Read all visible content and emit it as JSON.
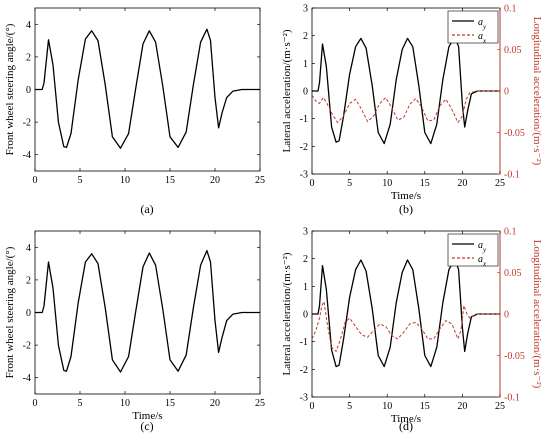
{
  "chart_data": [
    {
      "panel_label": "(a)",
      "type": "line",
      "xlabel": "",
      "ylabel": "Front wheel steering angle/(°)",
      "xlim": [
        0,
        25
      ],
      "ylim": [
        -5,
        5
      ],
      "xticks": [
        "0",
        "5",
        "10",
        "15",
        "20",
        "25"
      ],
      "yticks": [
        "-4",
        "-2",
        "0",
        "2",
        "4"
      ],
      "grid": false,
      "series": [
        {
          "color": "#000000",
          "x": [
            0,
            0.8,
            1.0,
            1.5,
            2.0,
            2.6,
            3.2,
            3.5,
            4.0,
            4.8,
            5.6,
            6.3,
            7.0,
            7.8,
            8.6,
            9.5,
            10.4,
            11.2,
            12.0,
            12.7,
            13.4,
            14.2,
            15.0,
            15.9,
            16.8,
            17.6,
            18.4,
            19.1,
            19.5,
            20.0,
            20.4,
            20.8,
            21.3,
            22.0,
            23.0,
            25.0
          ],
          "y": [
            0,
            0,
            0.4,
            3.05,
            1.5,
            -2.0,
            -3.5,
            -3.55,
            -2.7,
            0.6,
            3.1,
            3.6,
            3.0,
            0.3,
            -2.9,
            -3.6,
            -2.7,
            0.1,
            2.8,
            3.6,
            2.9,
            0.2,
            -2.9,
            -3.55,
            -2.6,
            0.3,
            2.9,
            3.7,
            3.0,
            -0.5,
            -2.35,
            -1.4,
            -0.5,
            -0.1,
            0,
            0
          ]
        }
      ]
    },
    {
      "panel_label": "(b)",
      "type": "line",
      "xlabel": "Time/s",
      "ylabel": "Lateral acceleration/(m·s⁻²)",
      "y2label": "Longitudinal acceleration/(m·s⁻²)",
      "xlim": [
        0,
        25
      ],
      "ylim": [
        -3,
        3
      ],
      "y2lim": [
        -0.1,
        0.1
      ],
      "xticks": [
        "0",
        "5",
        "10",
        "15",
        "20",
        "25"
      ],
      "yticks": [
        "-3",
        "-2",
        "-1",
        "0",
        "1",
        "2",
        "3"
      ],
      "y2ticks": [
        "-0.1",
        "-0.05",
        "0",
        "0.05",
        "0.1"
      ],
      "legend": "top-right",
      "grid": false,
      "series": [
        {
          "name": "a_y",
          "axis": "left",
          "color": "#000000",
          "x": [
            0,
            0.8,
            1.0,
            1.4,
            1.9,
            2.6,
            3.2,
            3.6,
            4.2,
            5.0,
            5.8,
            6.5,
            7.2,
            8.0,
            8.8,
            9.6,
            10.4,
            11.2,
            12.0,
            12.7,
            13.4,
            14.2,
            15.0,
            15.8,
            16.6,
            17.4,
            18.2,
            19.0,
            19.5,
            20.0,
            20.3,
            20.7,
            21.2,
            22.0,
            25.0
          ],
          "y": [
            0,
            0,
            0.3,
            1.7,
            0.9,
            -1.3,
            -1.85,
            -1.8,
            -0.9,
            0.6,
            1.6,
            1.9,
            1.55,
            0.2,
            -1.5,
            -1.9,
            -1.2,
            0.4,
            1.5,
            1.9,
            1.6,
            0.2,
            -1.5,
            -1.9,
            -1.2,
            0.4,
            1.6,
            1.95,
            1.6,
            -0.5,
            -1.3,
            -0.7,
            -0.1,
            0,
            0
          ]
        },
        {
          "name": "a_x",
          "axis": "right",
          "color": "#c0392b",
          "x": [
            0,
            0.5,
            1.0,
            1.5,
            2.0,
            2.7,
            3.4,
            4.2,
            5.0,
            5.8,
            6.6,
            7.4,
            8.2,
            9.0,
            9.8,
            10.6,
            11.4,
            12.2,
            13.0,
            13.8,
            14.6,
            15.4,
            16.2,
            17.0,
            17.8,
            18.6,
            19.4,
            20.0,
            20.5,
            21.0,
            22.0,
            25.0
          ],
          "y": [
            -0.005,
            -0.012,
            -0.015,
            -0.008,
            -0.015,
            -0.028,
            -0.038,
            -0.03,
            -0.015,
            -0.01,
            -0.022,
            -0.037,
            -0.03,
            -0.015,
            -0.008,
            -0.02,
            -0.035,
            -0.032,
            -0.016,
            -0.009,
            -0.02,
            -0.036,
            -0.035,
            -0.018,
            -0.01,
            -0.022,
            -0.038,
            -0.03,
            -0.01,
            -0.002,
            0,
            0
          ]
        }
      ]
    },
    {
      "panel_label": "(c)",
      "type": "line",
      "xlabel": "Time/s",
      "ylabel": "Front wheel steering angle/(°)",
      "xlim": [
        0,
        25
      ],
      "ylim": [
        -5,
        5
      ],
      "xticks": [
        "0",
        "5",
        "10",
        "15",
        "20",
        "25"
      ],
      "yticks": [
        "-4",
        "-2",
        "0",
        "2",
        "4"
      ],
      "grid": false,
      "series": [
        {
          "color": "#000000",
          "x": [
            0,
            0.8,
            1.0,
            1.5,
            2.0,
            2.6,
            3.2,
            3.5,
            4.0,
            4.8,
            5.6,
            6.3,
            7.0,
            7.8,
            8.6,
            9.5,
            10.4,
            11.2,
            12.0,
            12.7,
            13.4,
            14.2,
            15.0,
            15.9,
            16.8,
            17.6,
            18.4,
            19.1,
            19.5,
            20.0,
            20.4,
            20.8,
            21.3,
            22.0,
            23.0,
            25.0
          ],
          "y": [
            0,
            0,
            0.4,
            3.1,
            1.5,
            -2.0,
            -3.55,
            -3.6,
            -2.7,
            0.6,
            3.1,
            3.6,
            3.0,
            0.3,
            -2.9,
            -3.65,
            -2.7,
            0.1,
            2.8,
            3.65,
            2.9,
            0.2,
            -2.9,
            -3.6,
            -2.6,
            0.3,
            2.9,
            3.8,
            3.1,
            -0.5,
            -2.45,
            -1.5,
            -0.5,
            -0.1,
            0,
            0
          ]
        }
      ]
    },
    {
      "panel_label": "(d)",
      "type": "line",
      "xlabel": "Time/s",
      "ylabel": "Lateral acceleration/(m·s⁻²)",
      "y2label": "Longitudinal acceleration/(m·s⁻²)",
      "xlim": [
        0,
        25
      ],
      "ylim": [
        -3,
        3
      ],
      "y2lim": [
        -0.1,
        0.1
      ],
      "xticks": [
        "0",
        "5",
        "10",
        "15",
        "20",
        "25"
      ],
      "yticks": [
        "-3",
        "-2",
        "-1",
        "0",
        "1",
        "2",
        "3"
      ],
      "y2ticks": [
        "-0.1",
        "-0.05",
        "0",
        "0.05",
        "0.1"
      ],
      "legend": "top-right",
      "grid": false,
      "series": [
        {
          "name": "a_y",
          "axis": "left",
          "color": "#000000",
          "x": [
            0,
            0.8,
            1.0,
            1.4,
            1.9,
            2.6,
            3.2,
            3.6,
            4.2,
            5.0,
            5.8,
            6.5,
            7.2,
            8.0,
            8.8,
            9.6,
            10.4,
            11.2,
            12.0,
            12.7,
            13.4,
            14.2,
            15.0,
            15.8,
            16.6,
            17.4,
            18.2,
            19.0,
            19.5,
            20.0,
            20.3,
            20.7,
            21.2,
            22.0,
            25.0
          ],
          "y": [
            0,
            0,
            0.3,
            1.75,
            0.9,
            -1.3,
            -1.9,
            -1.85,
            -0.9,
            0.6,
            1.6,
            1.95,
            1.55,
            0.2,
            -1.5,
            -1.9,
            -1.2,
            0.4,
            1.5,
            1.95,
            1.6,
            0.2,
            -1.5,
            -1.9,
            -1.2,
            0.4,
            1.6,
            2.0,
            1.6,
            -0.5,
            -1.35,
            -0.7,
            -0.1,
            0,
            0
          ]
        },
        {
          "name": "a_x",
          "axis": "right",
          "color": "#c0392b",
          "x": [
            0,
            0.5,
            1.0,
            1.3,
            1.6,
            2.0,
            2.6,
            3.2,
            3.8,
            4.4,
            5.0,
            5.8,
            6.6,
            7.4,
            8.2,
            9.0,
            9.8,
            10.6,
            11.4,
            12.2,
            13.0,
            13.8,
            14.6,
            15.4,
            16.2,
            17.0,
            17.8,
            18.6,
            19.4,
            19.8,
            20.2,
            20.6,
            21.0,
            22.0,
            25.0
          ],
          "y": [
            -0.03,
            -0.02,
            -0.005,
            0.01,
            0.015,
            -0.01,
            -0.04,
            -0.045,
            -0.03,
            -0.01,
            -0.005,
            -0.015,
            -0.025,
            -0.028,
            -0.02,
            -0.012,
            -0.015,
            -0.026,
            -0.03,
            -0.022,
            -0.012,
            -0.01,
            -0.018,
            -0.03,
            -0.03,
            -0.018,
            -0.008,
            -0.012,
            -0.03,
            -0.02,
            0.01,
            0.0,
            -0.005,
            0,
            0
          ]
        }
      ]
    }
  ]
}
